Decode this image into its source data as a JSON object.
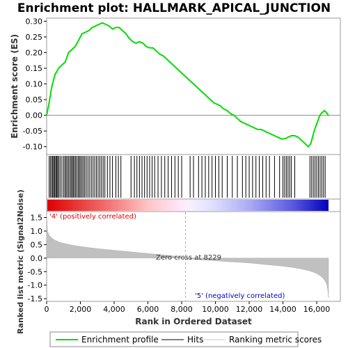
{
  "chart_data": {
    "type": "line",
    "title": "Enrichment plot: HALLMARK_APICAL_JUNCTION",
    "xlabel": "Rank in Ordered Dataset",
    "es_panel": {
      "ylabel": "Enrichment score (ES)",
      "ylim": [
        -0.125,
        0.31
      ],
      "yticks": [
        -0.1,
        -0.05,
        0.0,
        0.05,
        0.1,
        0.15,
        0.2,
        0.25,
        0.3
      ],
      "ytick_labels": [
        "-0.10",
        "-0.05",
        "0.00",
        "0.05",
        "0.10",
        "0.15",
        "0.20",
        "0.25",
        "0.30"
      ],
      "line_color": "#00dd00",
      "series": [
        {
          "name": "Enrichment profile",
          "x": [
            0,
            150,
            300,
            500,
            700,
            900,
            1100,
            1300,
            1500,
            1700,
            1900,
            2100,
            2300,
            2500,
            2700,
            2900,
            3100,
            3300,
            3500,
            3700,
            3900,
            4100,
            4300,
            4500,
            4700,
            4900,
            5100,
            5300,
            5500,
            5700,
            5900,
            6100,
            6300,
            6500,
            6700,
            6900,
            7100,
            7300,
            7500,
            7700,
            7900,
            8100,
            8300,
            8500,
            8700,
            8900,
            9100,
            9300,
            9500,
            9700,
            9900,
            10100,
            10300,
            10500,
            10700,
            10900,
            11100,
            11300,
            11500,
            11700,
            11900,
            12100,
            12300,
            12500,
            12700,
            12900,
            13100,
            13300,
            13500,
            13700,
            13900,
            14100,
            14300,
            14500,
            14700,
            14900,
            15100,
            15300,
            15500,
            15650,
            15750,
            15850,
            15950,
            16050,
            16150,
            16250,
            16350,
            16450,
            16550,
            16700
          ],
          "y": [
            0.0,
            0.04,
            0.09,
            0.13,
            0.15,
            0.16,
            0.17,
            0.2,
            0.21,
            0.22,
            0.24,
            0.26,
            0.265,
            0.27,
            0.28,
            0.285,
            0.29,
            0.295,
            0.29,
            0.285,
            0.275,
            0.28,
            0.28,
            0.27,
            0.26,
            0.245,
            0.235,
            0.23,
            0.235,
            0.23,
            0.22,
            0.215,
            0.215,
            0.205,
            0.195,
            0.19,
            0.18,
            0.17,
            0.16,
            0.15,
            0.14,
            0.13,
            0.12,
            0.11,
            0.1,
            0.09,
            0.08,
            0.07,
            0.06,
            0.05,
            0.04,
            0.035,
            0.03,
            0.02,
            0.015,
            0.005,
            0.0,
            -0.01,
            -0.02,
            -0.025,
            -0.03,
            -0.035,
            -0.04,
            -0.045,
            -0.045,
            -0.05,
            -0.055,
            -0.06,
            -0.065,
            -0.07,
            -0.075,
            -0.075,
            -0.07,
            -0.065,
            -0.065,
            -0.07,
            -0.08,
            -0.09,
            -0.1,
            -0.09,
            -0.07,
            -0.05,
            -0.035,
            -0.02,
            -0.005,
            0.005,
            0.01,
            0.015,
            0.01,
            0.0
          ]
        }
      ]
    },
    "hits": {
      "legend_label": "Hits",
      "ranks": [
        150,
        220,
        300,
        360,
        420,
        480,
        540,
        600,
        650,
        720,
        800,
        900,
        1000,
        1080,
        1150,
        1220,
        1300,
        1380,
        1450,
        1520,
        1580,
        1650,
        1720,
        1800,
        1880,
        1950,
        2020,
        2100,
        2180,
        2260,
        2350,
        2450,
        2550,
        2650,
        2750,
        2850,
        2950,
        3050,
        3150,
        3250,
        3350,
        3450,
        3600,
        3750,
        3900,
        4100,
        4250,
        4400,
        5000,
        5200,
        5350,
        5500,
        5650,
        5800,
        5950,
        6100,
        6250,
        6400,
        6600,
        6800,
        7000,
        7200,
        7400,
        7600,
        7800,
        8000,
        8500,
        8700,
        9000,
        9200,
        9400,
        9600,
        9800,
        10000,
        10200,
        10400,
        10700,
        11000,
        11300,
        11600,
        11800,
        12000,
        12200,
        12400,
        12600,
        12800,
        13000,
        13200,
        13500,
        13800,
        14000,
        14100,
        14200,
        14300,
        14400,
        14500,
        14700,
        15600,
        15700,
        15800,
        15900,
        16000,
        16100,
        16200,
        16300,
        16400,
        16500
      ]
    },
    "rank_metric": {
      "ylabel": "Ranked list metric (Signal2Noise)",
      "legend_label": "Ranking metric scores",
      "ylim": [
        -1.6,
        1.72
      ],
      "yticks": [
        -1.5,
        -1.0,
        -0.5,
        0.0,
        0.5,
        1.0,
        1.5
      ],
      "ytick_labels": [
        "-1.5",
        "-1.0",
        "-0.5",
        "0.0",
        "0.5",
        "1.0",
        "1.5"
      ],
      "x": [
        0,
        50,
        150,
        300,
        500,
        800,
        1200,
        1600,
        2000,
        2500,
        3000,
        3500,
        4000,
        4500,
        5000,
        5500,
        6000,
        6500,
        7000,
        7500,
        8000,
        8229,
        8500,
        9000,
        9500,
        10000,
        10500,
        11000,
        11500,
        12000,
        12500,
        13000,
        13500,
        14000,
        14500,
        15000,
        15500,
        15800,
        16000,
        16200,
        16400,
        16500,
        16600,
        16650,
        16700
      ],
      "values": [
        1.7,
        1.0,
        0.85,
        0.75,
        0.66,
        0.58,
        0.52,
        0.47,
        0.43,
        0.39,
        0.35,
        0.32,
        0.29,
        0.26,
        0.23,
        0.2,
        0.17,
        0.14,
        0.11,
        0.08,
        0.03,
        0.0,
        -0.03,
        -0.06,
        -0.08,
        -0.1,
        -0.12,
        -0.14,
        -0.16,
        -0.18,
        -0.21,
        -0.24,
        -0.27,
        -0.3,
        -0.34,
        -0.39,
        -0.46,
        -0.52,
        -0.57,
        -0.65,
        -0.76,
        -0.85,
        -0.98,
        -1.15,
        -1.48
      ],
      "zero_cross_label": "Zero cross at 8229",
      "zero_cross_rank": 8229,
      "pos_label": "'4' (positively correlated)",
      "neg_label": "'5' (negatively correlated)",
      "pos_color": "#dd0000",
      "neg_color": "#0000cc"
    },
    "xlim": [
      0,
      17400
    ],
    "xticks": [
      0,
      2000,
      4000,
      6000,
      8000,
      10000,
      12000,
      14000,
      16000
    ],
    "xtick_labels": [
      "0",
      "2,000",
      "4,000",
      "6,000",
      "8,000",
      "10,000",
      "12,000",
      "14,000",
      "16,000"
    ],
    "n_genes": 16700,
    "legend": {
      "placement": "bottom",
      "items": [
        "Enrichment profile",
        "Hits",
        "Ranking metric scores"
      ]
    }
  }
}
